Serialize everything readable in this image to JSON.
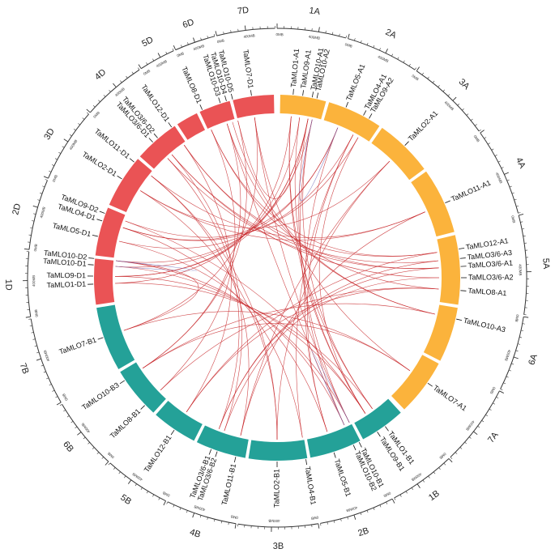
{
  "colors": {
    "A": "#FBB33C",
    "B": "#24A198",
    "D": "#EA5355",
    "link": "#C8282C",
    "link_alt": "#6A66B6",
    "axis": "#333333"
  },
  "tick_labels": [
    "0MB",
    "400MB"
  ],
  "chromosomes": [
    {
      "name": "1A",
      "genome": "A"
    },
    {
      "name": "2A",
      "genome": "A"
    },
    {
      "name": "3A",
      "genome": "A"
    },
    {
      "name": "4A",
      "genome": "A"
    },
    {
      "name": "5A",
      "genome": "A"
    },
    {
      "name": "6A",
      "genome": "A"
    },
    {
      "name": "7A",
      "genome": "A"
    },
    {
      "name": "1B",
      "genome": "B"
    },
    {
      "name": "2B",
      "genome": "B"
    },
    {
      "name": "3B",
      "genome": "B"
    },
    {
      "name": "4B",
      "genome": "B"
    },
    {
      "name": "5B",
      "genome": "B"
    },
    {
      "name": "6B",
      "genome": "B"
    },
    {
      "name": "7B",
      "genome": "B"
    },
    {
      "name": "1D",
      "genome": "D"
    },
    {
      "name": "2D",
      "genome": "D"
    },
    {
      "name": "3D",
      "genome": "D"
    },
    {
      "name": "4D",
      "genome": "D"
    },
    {
      "name": "5D",
      "genome": "D"
    },
    {
      "name": "6D",
      "genome": "D"
    },
    {
      "name": "7D",
      "genome": "D"
    }
  ],
  "genes": [
    {
      "name": "TaMLO1-A1",
      "chrom": "1A"
    },
    {
      "name": "TaMLO9-A1",
      "chrom": "1A"
    },
    {
      "name": "TaMLO10-A1",
      "chrom": "1A"
    },
    {
      "name": "TaMLO10-A2",
      "chrom": "1A"
    },
    {
      "name": "TaMLO5-A1",
      "chrom": "2A"
    },
    {
      "name": "TaMLO4-A1",
      "chrom": "2A"
    },
    {
      "name": "TaMLO9-A2",
      "chrom": "2A"
    },
    {
      "name": "TaMLO2-A1",
      "chrom": "3A"
    },
    {
      "name": "TaMLO11-A1",
      "chrom": "4A"
    },
    {
      "name": "TaMLO12-A1",
      "chrom": "5A"
    },
    {
      "name": "TaMLO3/6-A3",
      "chrom": "5A"
    },
    {
      "name": "TaMLO3/6-A1",
      "chrom": "5A"
    },
    {
      "name": "TaMLO3/6-A2",
      "chrom": "5A"
    },
    {
      "name": "TaMLO8-A1",
      "chrom": "5A"
    },
    {
      "name": "TaMLO10-A3",
      "chrom": "6A"
    },
    {
      "name": "TaMLO7-A1",
      "chrom": "7A"
    },
    {
      "name": "TaMLO1-B1",
      "chrom": "1B"
    },
    {
      "name": "TaMLO9-B1",
      "chrom": "1B"
    },
    {
      "name": "TaMLO10-B1",
      "chrom": "1B"
    },
    {
      "name": "TaMLO10-B2",
      "chrom": "1B"
    },
    {
      "name": "TaMLO5-B1",
      "chrom": "2B"
    },
    {
      "name": "TaMLO4-B1",
      "chrom": "2B"
    },
    {
      "name": "TaMLO2-B1",
      "chrom": "3B"
    },
    {
      "name": "TaMLO11-B1",
      "chrom": "4B"
    },
    {
      "name": "TaMLO3/6-B2",
      "chrom": "4B"
    },
    {
      "name": "TaMLO3/6-B1",
      "chrom": "4B"
    },
    {
      "name": "TaMLO12-B1",
      "chrom": "5B"
    },
    {
      "name": "TaMLO8-B1",
      "chrom": "5B"
    },
    {
      "name": "TaMLO10-B3",
      "chrom": "6B"
    },
    {
      "name": "TaMLO7-B1",
      "chrom": "7B"
    },
    {
      "name": "TaMLO1-D1",
      "chrom": "1D"
    },
    {
      "name": "TaMLO9-D1",
      "chrom": "1D"
    },
    {
      "name": "TaMLO10-D1",
      "chrom": "1D"
    },
    {
      "name": "TaMLO10-D2",
      "chrom": "1D"
    },
    {
      "name": "TaMLO5-D1",
      "chrom": "2D"
    },
    {
      "name": "TaMLO4-D1",
      "chrom": "2D"
    },
    {
      "name": "TaMLO9-D2",
      "chrom": "2D"
    },
    {
      "name": "TaMLO2-D1",
      "chrom": "3D"
    },
    {
      "name": "TaMLO11-D1",
      "chrom": "4D"
    },
    {
      "name": "TaMLO3/6-D1",
      "chrom": "4D"
    },
    {
      "name": "TaMLO3/6-D2",
      "chrom": "4D"
    },
    {
      "name": "TaMLO12-D1",
      "chrom": "5D"
    },
    {
      "name": "TaMLO8-D1",
      "chrom": "5D"
    },
    {
      "name": "TaMLO10-D3",
      "chrom": "6D"
    },
    {
      "name": "TaMLO10-D4",
      "chrom": "6D"
    },
    {
      "name": "TaMLO10-D5",
      "chrom": "6D"
    },
    {
      "name": "TaMLO7-D1",
      "chrom": "7D"
    }
  ],
  "links": [
    [
      "TaMLO1-A1",
      "TaMLO1-B1"
    ],
    [
      "TaMLO1-A1",
      "TaMLO1-D1"
    ],
    [
      "TaMLO1-B1",
      "TaMLO1-D1"
    ],
    [
      "TaMLO9-A1",
      "TaMLO9-B1"
    ],
    [
      "TaMLO9-A1",
      "TaMLO9-D1"
    ],
    [
      "TaMLO9-B1",
      "TaMLO9-D1"
    ],
    [
      "TaMLO10-A1",
      "TaMLO10-B1"
    ],
    [
      "TaMLO10-A1",
      "TaMLO10-D1"
    ],
    [
      "TaMLO10-B1",
      "TaMLO10-D1"
    ],
    [
      "TaMLO10-A2",
      "TaMLO10-B2"
    ],
    [
      "TaMLO10-A2",
      "TaMLO10-D2"
    ],
    [
      "TaMLO10-B2",
      "TaMLO10-D2"
    ],
    [
      "TaMLO5-A1",
      "TaMLO5-B1"
    ],
    [
      "TaMLO5-A1",
      "TaMLO5-D1"
    ],
    [
      "TaMLO5-B1",
      "TaMLO5-D1"
    ],
    [
      "TaMLO4-A1",
      "TaMLO4-B1"
    ],
    [
      "TaMLO4-A1",
      "TaMLO4-D1"
    ],
    [
      "TaMLO4-B1",
      "TaMLO4-D1"
    ],
    [
      "TaMLO9-A2",
      "TaMLO9-D2"
    ],
    [
      "TaMLO9-A2",
      "TaMLO9-B1"
    ],
    [
      "TaMLO2-A1",
      "TaMLO2-B1"
    ],
    [
      "TaMLO2-A1",
      "TaMLO2-D1"
    ],
    [
      "TaMLO2-B1",
      "TaMLO2-D1"
    ],
    [
      "TaMLO11-A1",
      "TaMLO11-B1"
    ],
    [
      "TaMLO11-A1",
      "TaMLO11-D1"
    ],
    [
      "TaMLO11-B1",
      "TaMLO11-D1"
    ],
    [
      "TaMLO12-A1",
      "TaMLO12-B1"
    ],
    [
      "TaMLO12-A1",
      "TaMLO12-D1"
    ],
    [
      "TaMLO12-B1",
      "TaMLO12-D1"
    ],
    [
      "TaMLO3/6-A1",
      "TaMLO3/6-B1"
    ],
    [
      "TaMLO3/6-A1",
      "TaMLO3/6-D1"
    ],
    [
      "TaMLO3/6-B1",
      "TaMLO3/6-D1"
    ],
    [
      "TaMLO3/6-A2",
      "TaMLO3/6-B2"
    ],
    [
      "TaMLO3/6-A2",
      "TaMLO3/6-D2"
    ],
    [
      "TaMLO3/6-B2",
      "TaMLO3/6-D2"
    ],
    [
      "TaMLO3/6-A3",
      "TaMLO3/6-D2"
    ],
    [
      "TaMLO3/6-A3",
      "TaMLO3/6-B1"
    ],
    [
      "TaMLO8-A1",
      "TaMLO8-B1"
    ],
    [
      "TaMLO8-A1",
      "TaMLO8-D1"
    ],
    [
      "TaMLO8-B1",
      "TaMLO8-D1"
    ],
    [
      "TaMLO10-A3",
      "TaMLO10-B3"
    ],
    [
      "TaMLO10-A3",
      "TaMLO10-D3"
    ],
    [
      "TaMLO10-B3",
      "TaMLO10-D3"
    ],
    [
      "TaMLO10-A3",
      "TaMLO10-D4"
    ],
    [
      "TaMLO10-B3",
      "TaMLO10-D5"
    ],
    [
      "TaMLO7-A1",
      "TaMLO7-B1"
    ],
    [
      "TaMLO7-A1",
      "TaMLO7-D1"
    ],
    [
      "TaMLO7-B1",
      "TaMLO7-D1"
    ],
    [
      "TaMLO1-A1",
      "TaMLO9-B1"
    ],
    [
      "TaMLO10-A1",
      "TaMLO10-D5"
    ],
    [
      "TaMLO5-A1",
      "TaMLO4-D1"
    ],
    [
      "TaMLO2-A1",
      "TaMLO11-B1"
    ],
    [
      "TaMLO11-A1",
      "TaMLO2-D1"
    ],
    [
      "TaMLO12-A1",
      "TaMLO8-D1"
    ],
    [
      "TaMLO8-A1",
      "TaMLO12-B1"
    ],
    [
      "TaMLO7-A1",
      "TaMLO10-B3"
    ],
    [
      "TaMLO1-B1",
      "TaMLO10-A2"
    ],
    [
      "TaMLO5-B1",
      "TaMLO4-A1"
    ],
    [
      "TaMLO2-B1",
      "TaMLO11-D1"
    ],
    [
      "TaMLO7-B1",
      "TaMLO10-D2"
    ],
    [
      "TaMLO9-D1",
      "TaMLO10-A1"
    ],
    [
      "TaMLO12-D1",
      "TaMLO3/6-A1"
    ],
    [
      "TaMLO7-D1",
      "TaMLO10-B1"
    ],
    [
      "TaMLO9-D2",
      "TaMLO9-B1"
    ],
    [
      "TaMLO10-D3",
      "TaMLO10-B2"
    ]
  ],
  "alt_links": [
    [
      "TaMLO10-A2",
      "TaMLO5-A1"
    ],
    [
      "TaMLO10-B1",
      "TaMLO10-B2"
    ],
    [
      "TaMLO10-D1",
      "TaMLO10-D2"
    ]
  ]
}
